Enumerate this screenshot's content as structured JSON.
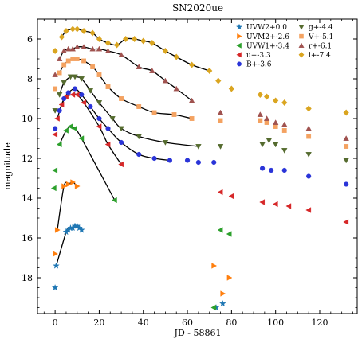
{
  "chart_data": {
    "type": "scatter",
    "title": "SN2020ue",
    "xlabel": "JD - 58861",
    "ylabel": "magnitude",
    "xlim": [
      -8,
      137
    ],
    "ylim": [
      19.8,
      5.0
    ],
    "y_inverted": true,
    "xticks": [
      0,
      20,
      40,
      60,
      80,
      100,
      120
    ],
    "yticks": [
      6,
      8,
      10,
      12,
      14,
      16,
      18
    ],
    "legend_position": "top-right",
    "series": [
      {
        "name": "UVW2+0.0",
        "marker": "star",
        "color": "#1f77b4",
        "points": [
          [
            0,
            18.5
          ],
          [
            0.5,
            17.4
          ],
          [
            5,
            15.7
          ],
          [
            6,
            15.6
          ],
          [
            7,
            15.5
          ],
          [
            8,
            15.5
          ],
          [
            9,
            15.4
          ],
          [
            10,
            15.4
          ],
          [
            11,
            15.5
          ],
          [
            12,
            15.6
          ],
          [
            73,
            19.5
          ],
          [
            76,
            19.3
          ]
        ]
      },
      {
        "name": "UVM2+-2.6",
        "marker": "tri-right",
        "color": "#ff7f0e",
        "points": [
          [
            0,
            16.8
          ],
          [
            1,
            15.6
          ],
          [
            4,
            13.4
          ],
          [
            6,
            13.3
          ],
          [
            8,
            13.2
          ],
          [
            10,
            13.4
          ],
          [
            72,
            17.4
          ],
          [
            76,
            18.8
          ],
          [
            79,
            18.0
          ]
        ]
      },
      {
        "name": "UVW1+-3.4",
        "marker": "tri-left",
        "color": "#2ca02c",
        "points": [
          [
            -0.5,
            13.5
          ],
          [
            0,
            12.6
          ],
          [
            2,
            11.3
          ],
          [
            5,
            10.6
          ],
          [
            7,
            10.4
          ],
          [
            9,
            10.5
          ],
          [
            12,
            11.0
          ],
          [
            27,
            14.1
          ],
          [
            72,
            19.5
          ],
          [
            75,
            15.6
          ],
          [
            79,
            15.8
          ]
        ]
      },
      {
        "name": "u+-3.3",
        "marker": "tri-left",
        "color": "#d62728",
        "points": [
          [
            0,
            10.8
          ],
          [
            1,
            10.0
          ],
          [
            3,
            9.3
          ],
          [
            5,
            8.9
          ],
          [
            8,
            8.8
          ],
          [
            10,
            8.8
          ],
          [
            13,
            9.2
          ],
          [
            20,
            10.4
          ],
          [
            24,
            11.3
          ],
          [
            30,
            12.3
          ],
          [
            75,
            13.7
          ],
          [
            80,
            13.9
          ],
          [
            94,
            14.2
          ],
          [
            100,
            14.3
          ],
          [
            106,
            14.4
          ],
          [
            115,
            14.6
          ],
          [
            132,
            15.2
          ]
        ]
      },
      {
        "name": "B+-3.6",
        "marker": "circle",
        "color": "#2a34d8",
        "points": [
          [
            0,
            10.5
          ],
          [
            2,
            9.6
          ],
          [
            4,
            9.0
          ],
          [
            6,
            8.7
          ],
          [
            9,
            8.5
          ],
          [
            12,
            8.8
          ],
          [
            16,
            9.4
          ],
          [
            20,
            10.0
          ],
          [
            24,
            10.5
          ],
          [
            30,
            11.2
          ],
          [
            38,
            11.8
          ],
          [
            45,
            12.0
          ],
          [
            52,
            12.1
          ],
          [
            60,
            12.1
          ],
          [
            65,
            12.2
          ],
          [
            72,
            12.2
          ],
          [
            94,
            12.5
          ],
          [
            98,
            12.6
          ],
          [
            104,
            12.6
          ],
          [
            115,
            12.9
          ],
          [
            132,
            13.3
          ]
        ]
      },
      {
        "name": "g+-4.4",
        "marker": "tri-down",
        "color": "#556b2f",
        "points": [
          [
            0,
            9.6
          ],
          [
            2,
            8.8
          ],
          [
            4,
            8.2
          ],
          [
            7,
            7.9
          ],
          [
            9,
            7.9
          ],
          [
            12,
            8.0
          ],
          [
            16,
            8.6
          ],
          [
            20,
            9.2
          ],
          [
            26,
            10.0
          ],
          [
            30,
            10.5
          ],
          [
            38,
            10.9
          ],
          [
            50,
            11.2
          ],
          [
            65,
            11.4
          ],
          [
            75,
            11.4
          ],
          [
            94,
            11.3
          ],
          [
            97,
            11.1
          ],
          [
            100,
            11.3
          ],
          [
            104,
            11.6
          ],
          [
            115,
            11.8
          ],
          [
            132,
            12.1
          ]
        ]
      },
      {
        "name": "V+-5.1",
        "marker": "square",
        "color": "#f4a261",
        "points": [
          [
            0,
            8.5
          ],
          [
            2,
            7.7
          ],
          [
            4,
            7.3
          ],
          [
            6,
            7.1
          ],
          [
            8,
            7.0
          ],
          [
            10,
            7.0
          ],
          [
            13,
            7.1
          ],
          [
            17,
            7.4
          ],
          [
            20,
            7.8
          ],
          [
            24,
            8.4
          ],
          [
            30,
            9.0
          ],
          [
            38,
            9.4
          ],
          [
            45,
            9.7
          ],
          [
            54,
            9.8
          ],
          [
            62,
            10.0
          ],
          [
            75,
            10.1
          ],
          [
            93,
            10.1
          ],
          [
            96,
            10.2
          ],
          [
            100,
            10.4
          ],
          [
            104,
            10.6
          ],
          [
            115,
            10.9
          ],
          [
            132,
            11.4
          ]
        ]
      },
      {
        "name": "r+-6.1",
        "marker": "triangle",
        "color": "#a0524f",
        "points": [
          [
            0,
            7.8
          ],
          [
            2,
            7.0
          ],
          [
            4,
            6.6
          ],
          [
            6,
            6.5
          ],
          [
            8,
            6.5
          ],
          [
            10,
            6.4
          ],
          [
            13,
            6.4
          ],
          [
            17,
            6.5
          ],
          [
            20,
            6.5
          ],
          [
            24,
            6.6
          ],
          [
            30,
            6.8
          ],
          [
            38,
            7.4
          ],
          [
            44,
            7.6
          ],
          [
            50,
            8.1
          ],
          [
            55,
            8.5
          ],
          [
            62,
            9.1
          ],
          [
            75,
            9.7
          ],
          [
            93,
            9.8
          ],
          [
            96,
            10.0
          ],
          [
            100,
            10.2
          ],
          [
            104,
            10.3
          ],
          [
            115,
            10.5
          ],
          [
            132,
            11.0
          ]
        ]
      },
      {
        "name": "i+-7.4",
        "marker": "diamond",
        "color": "#daa520",
        "points": [
          [
            0,
            6.6
          ],
          [
            3,
            5.9
          ],
          [
            5,
            5.6
          ],
          [
            8,
            5.5
          ],
          [
            10,
            5.5
          ],
          [
            13,
            5.6
          ],
          [
            17,
            5.7
          ],
          [
            20,
            6.0
          ],
          [
            24,
            6.2
          ],
          [
            28,
            6.3
          ],
          [
            32,
            6.0
          ],
          [
            36,
            6.0
          ],
          [
            40,
            6.1
          ],
          [
            44,
            6.2
          ],
          [
            50,
            6.6
          ],
          [
            55,
            6.9
          ],
          [
            62,
            7.3
          ],
          [
            70,
            7.6
          ],
          [
            74,
            8.1
          ],
          [
            80,
            8.5
          ],
          [
            93,
            8.8
          ],
          [
            96,
            8.9
          ],
          [
            100,
            9.1
          ],
          [
            104,
            9.2
          ],
          [
            115,
            9.5
          ],
          [
            132,
            9.7
          ]
        ]
      }
    ]
  }
}
